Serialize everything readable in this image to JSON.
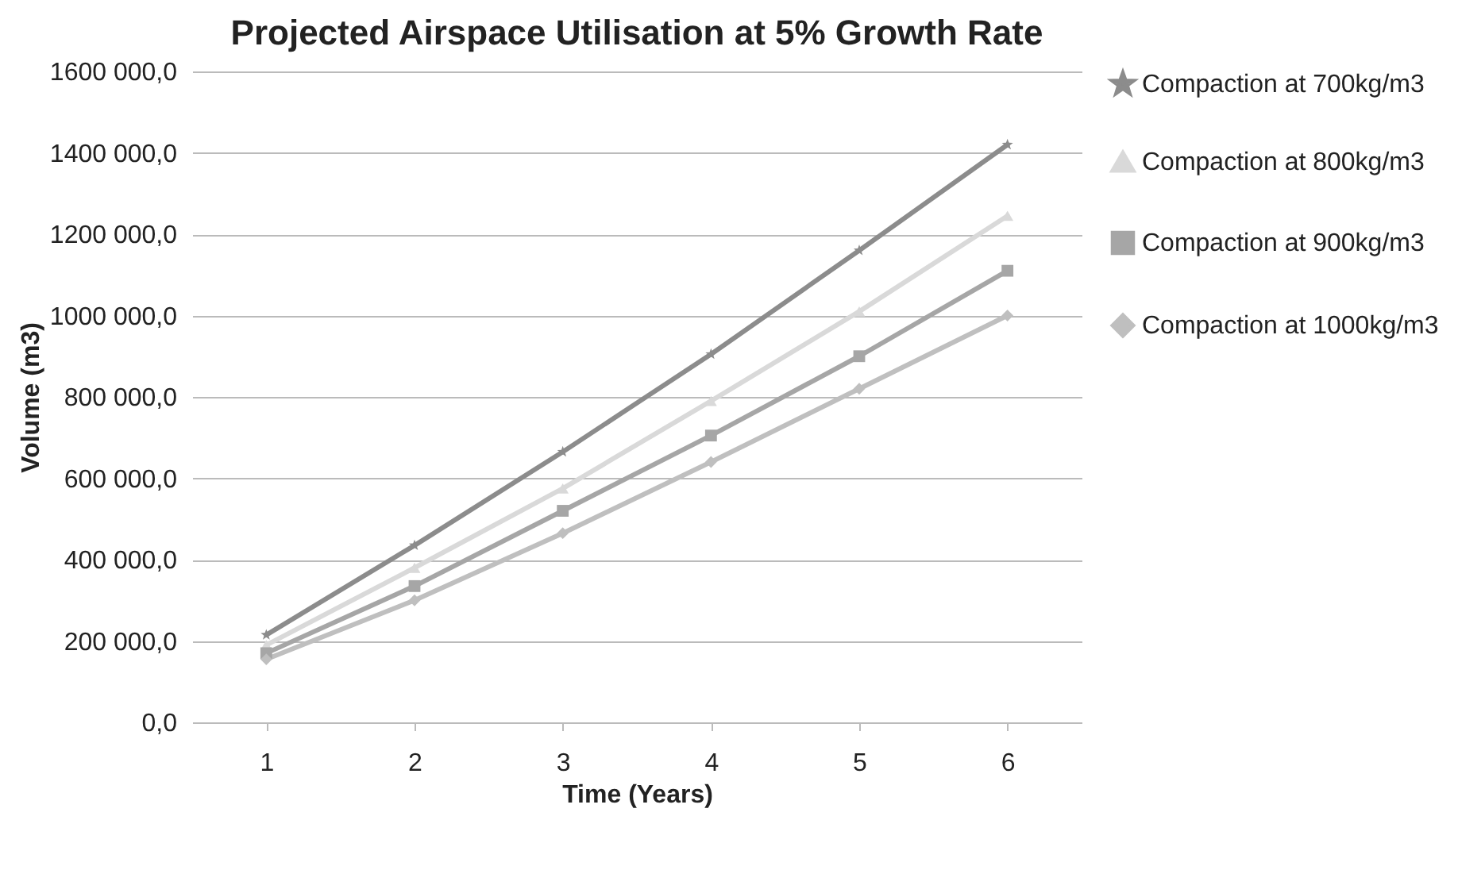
{
  "chart_data": {
    "type": "line",
    "title": "Projected Airspace Utilisation at 5% Growth Rate",
    "xlabel": "Time (Years)",
    "ylabel": "Volume (m3)",
    "categories": [
      "1",
      "2",
      "3",
      "4",
      "5",
      "6"
    ],
    "series": [
      {
        "name": "Compaction at 700kg/m3",
        "color": "#8c8c8c",
        "marker": "star",
        "values": [
          215000,
          435000,
          665000,
          905000,
          1160000,
          1420000
        ]
      },
      {
        "name": "Compaction at 800kg/m3",
        "color": "#d9d9d9",
        "marker": "triangle",
        "values": [
          190000,
          380000,
          575000,
          790000,
          1010000,
          1245000
        ]
      },
      {
        "name": "Compaction at 900kg/m3",
        "color": "#a6a6a6",
        "marker": "square",
        "values": [
          170000,
          335000,
          520000,
          705000,
          900000,
          1110000
        ]
      },
      {
        "name": "Compaction at 1000kg/m3",
        "color": "#bfbfbf",
        "marker": "diamond",
        "values": [
          155000,
          300000,
          465000,
          640000,
          820000,
          1000000
        ]
      }
    ],
    "ylim": [
      0,
      1600000
    ],
    "yticks": [
      {
        "value": 0,
        "label": "0,0"
      },
      {
        "value": 200000,
        "label": "200 000,0"
      },
      {
        "value": 400000,
        "label": "400 000,0"
      },
      {
        "value": 600000,
        "label": "600 000,0"
      },
      {
        "value": 800000,
        "label": "800 000,0"
      },
      {
        "value": 1000000,
        "label": "1000 000,0"
      },
      {
        "value": 1200000,
        "label": "1200 000,0"
      },
      {
        "value": 1400000,
        "label": "1400 000,0"
      },
      {
        "value": 1600000,
        "label": "1600 000,0"
      }
    ],
    "grid": "y",
    "legend": "right",
    "line_style": "solid"
  }
}
